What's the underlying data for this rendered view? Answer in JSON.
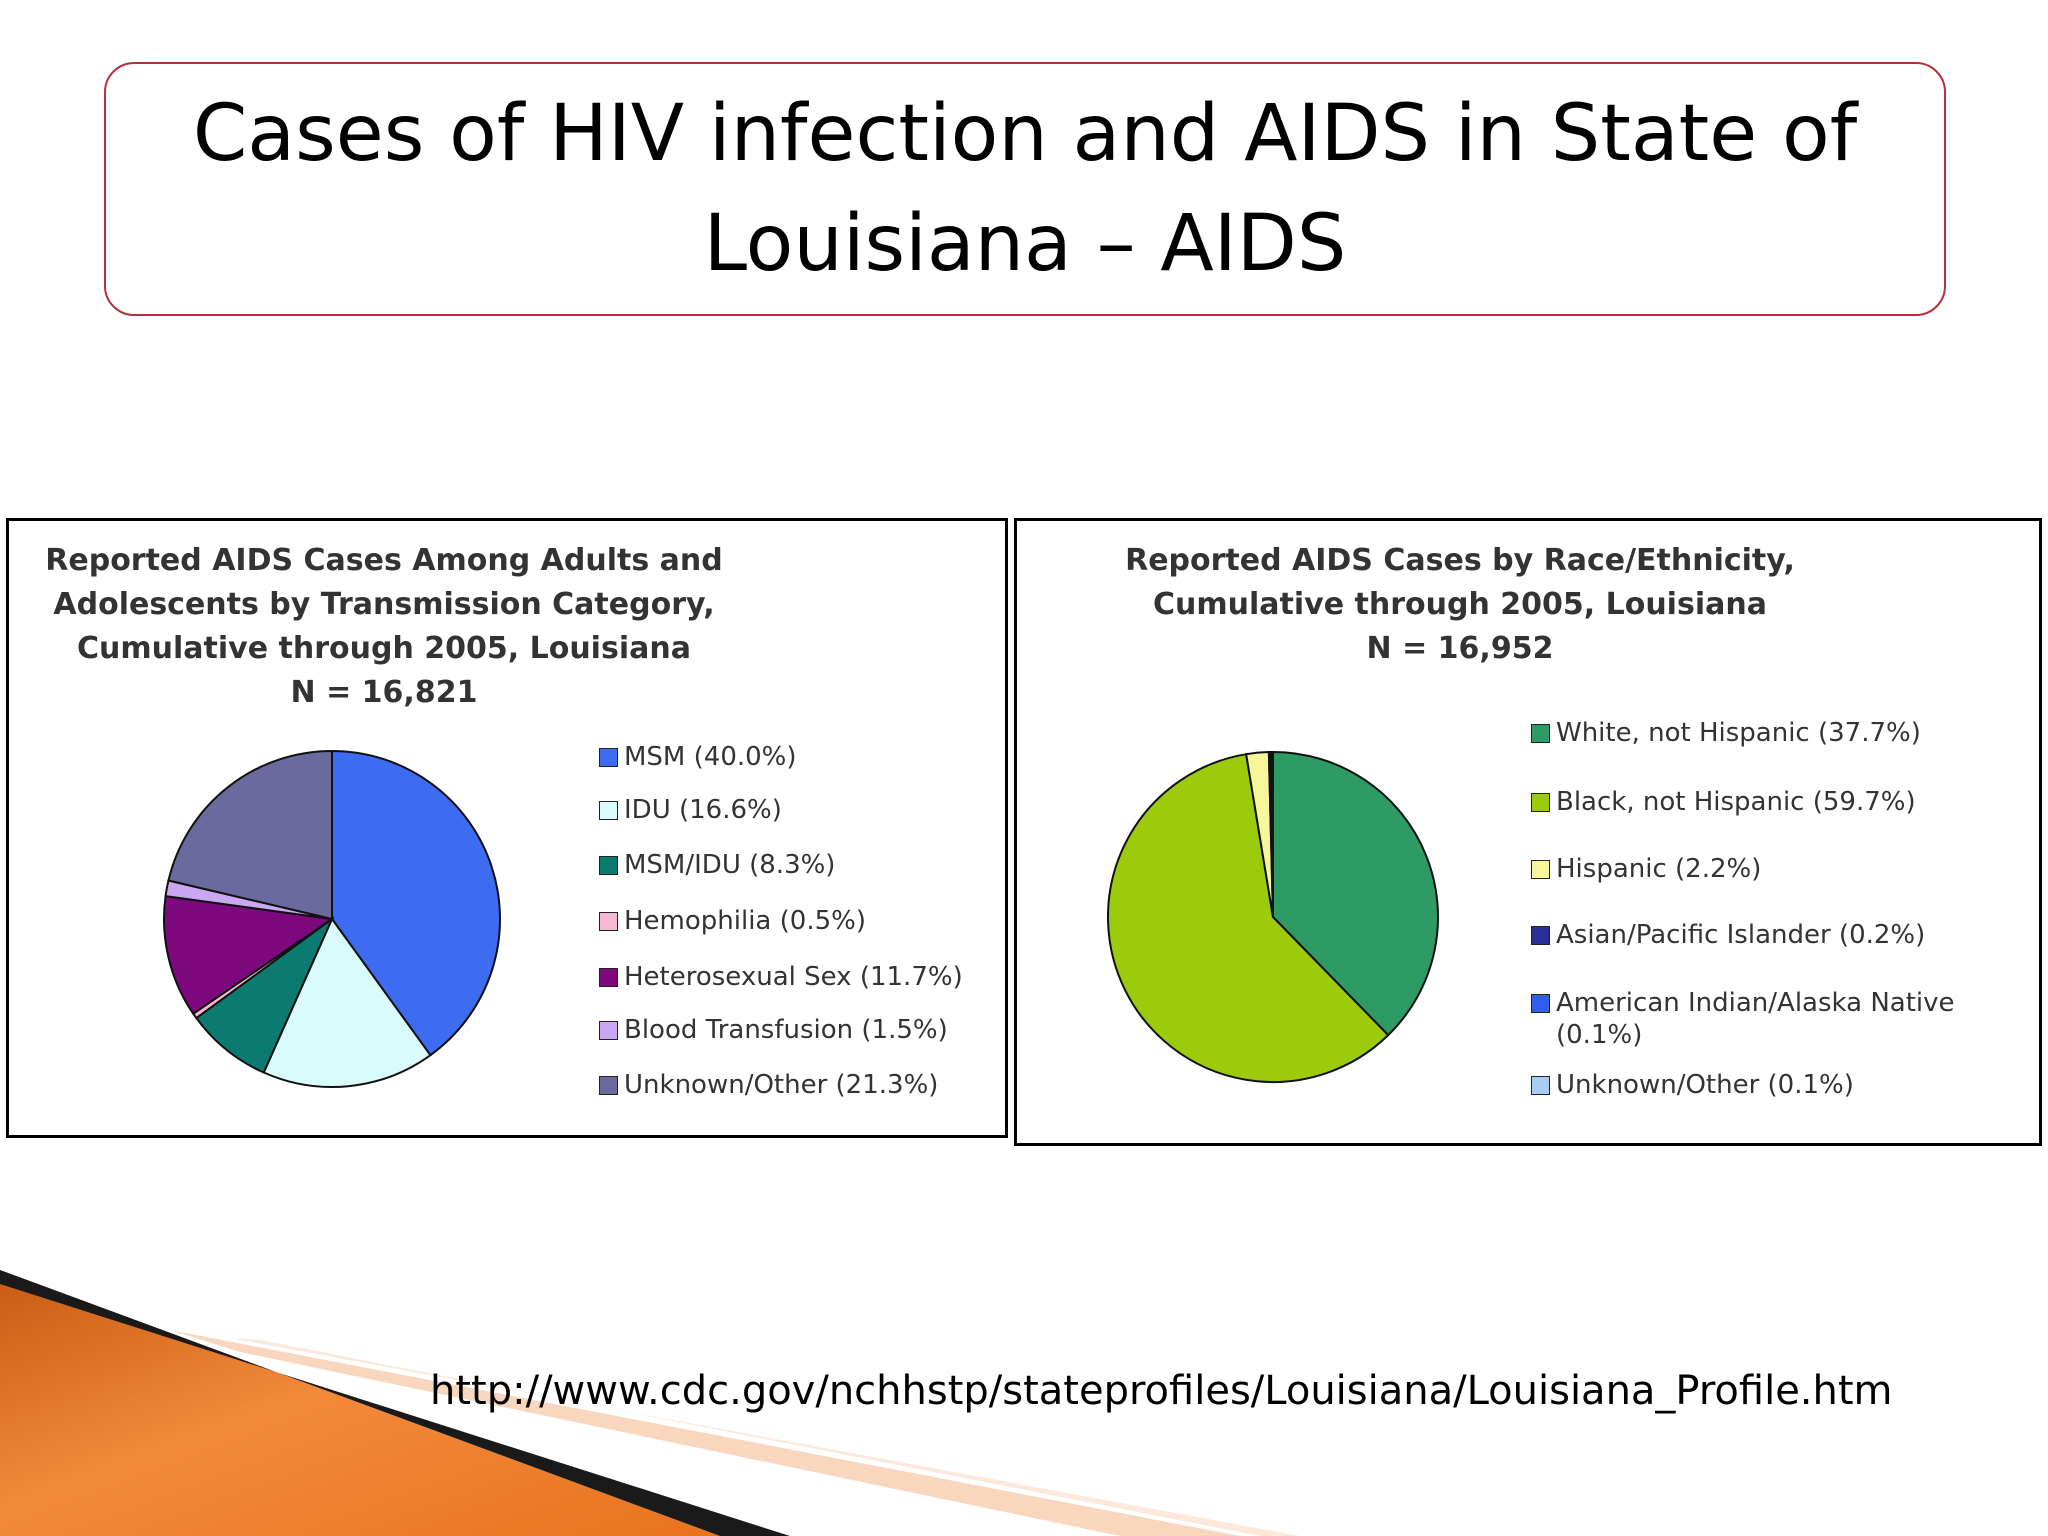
{
  "slide": {
    "title": "Cases of HIV infection and AIDS in State of\nLouisiana – AIDS",
    "footer_url": "http://www.cdc.gov/nchhstp/stateprofiles/Louisiana/Louisiana_Profile.htm"
  },
  "colors": {
    "title_border": "#b3303c",
    "swoosh_orange": "#e8731f",
    "swoosh_dark": "#1a1a1a"
  },
  "chart_data": [
    {
      "type": "pie",
      "title": [
        "Reported AIDS Cases Among Adults and",
        "Adolescents by Transmission Category,",
        "Cumulative through 2005, Louisiana",
        "N = 16,821"
      ],
      "legend_placement": "right",
      "slices": [
        {
          "label": "MSM (40.0%)",
          "value": 40.0,
          "color": "#3d6bf2"
        },
        {
          "label": "IDU (16.6%)",
          "value": 16.6,
          "color": "#d9fbfb"
        },
        {
          "label": "MSM/IDU (8.3%)",
          "value": 8.3,
          "color": "#0b7a70"
        },
        {
          "label": "Hemophilia (0.5%)",
          "value": 0.5,
          "color": "#f6b8d2"
        },
        {
          "label": "Heterosexual Sex (11.7%)",
          "value": 11.7,
          "color": "#7e087e"
        },
        {
          "label": "Blood Transfusion (1.5%)",
          "value": 1.5,
          "color": "#c9a7f3"
        },
        {
          "label": "Unknown/Other (21.3%)",
          "value": 21.3,
          "color": "#6a6a9e"
        }
      ]
    },
    {
      "type": "pie",
      "title": [
        "Reported AIDS Cases by Race/Ethnicity,",
        "Cumulative through 2005, Louisiana",
        "N = 16,952"
      ],
      "legend_placement": "right",
      "slices": [
        {
          "label": "White, not Hispanic (37.7%)",
          "value": 37.7,
          "color": "#2e9a64"
        },
        {
          "label": "Black, not Hispanic (59.7%)",
          "value": 59.7,
          "color": "#9ccb0c"
        },
        {
          "label": "Hispanic (2.2%)",
          "value": 2.2,
          "color": "#f8f59a"
        },
        {
          "label": "Asian/Pacific Islander (0.2%)",
          "value": 0.2,
          "color": "#2a2f9a"
        },
        {
          "label": "American Indian/Alaska Native (0.1%)",
          "value": 0.1,
          "color": "#2f5ef0"
        },
        {
          "label": "Unknown/Other (0.1%)",
          "value": 0.1,
          "color": "#a9cdf2"
        }
      ]
    }
  ]
}
